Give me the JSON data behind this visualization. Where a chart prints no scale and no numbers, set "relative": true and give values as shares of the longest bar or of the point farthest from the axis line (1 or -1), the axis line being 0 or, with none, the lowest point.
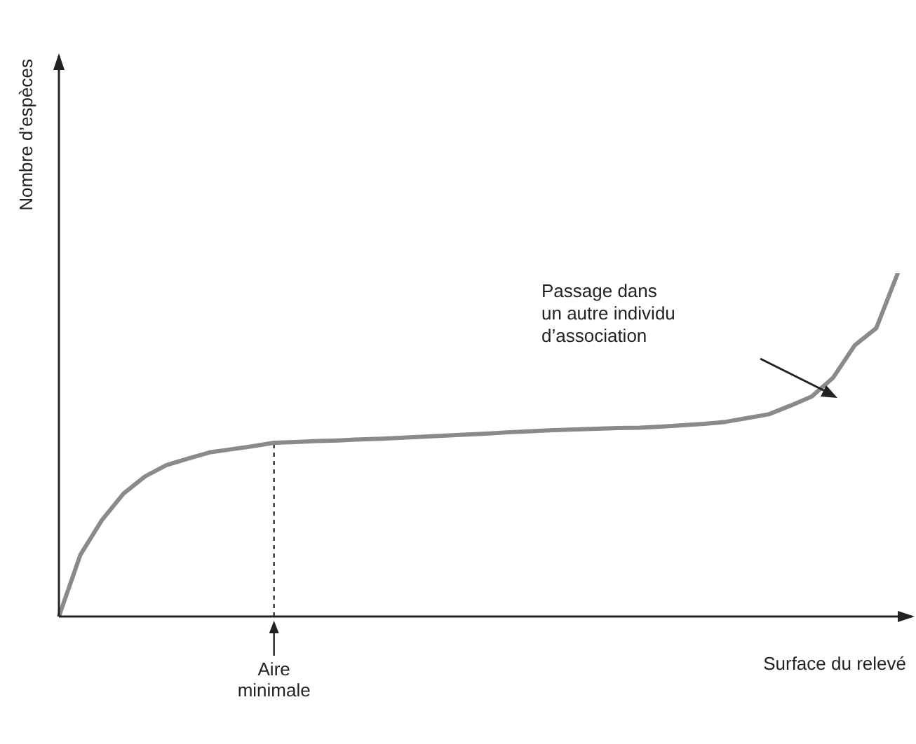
{
  "chart_data": {
    "type": "line",
    "relative": true,
    "xlabel": "Surface du relevé",
    "ylabel": "Nombre d’espèces",
    "marker": "none",
    "line_style": "solid",
    "categories": [
      null,
      null,
      null,
      null,
      null,
      null,
      null,
      null,
      null,
      null,
      null,
      null,
      null,
      null,
      null,
      null,
      null,
      null,
      null,
      null,
      null,
      null,
      null,
      null,
      null,
      null,
      null,
      null,
      null,
      null,
      null,
      null,
      null,
      null,
      null,
      null,
      null,
      null,
      null,
      null
    ],
    "series": [
      {
        "color": "#8a8a8a",
        "values": [
          0,
          0.18,
          0.281,
          0.358,
          0.408,
          0.441,
          0.46,
          0.478,
          0.487,
          0.496,
          0.506,
          0.508,
          0.511,
          0.513,
          0.516,
          0.518,
          0.521,
          0.524,
          0.527,
          0.53,
          0.533,
          0.537,
          0.54,
          0.543,
          0.545,
          0.547,
          0.549,
          0.55,
          0.553,
          0.557,
          0.561,
          0.567,
          0.578,
          0.589,
          0.614,
          0.641,
          0.696,
          0.79,
          0.84,
          1
        ]
      }
    ],
    "annotations": [
      "Aire minimale",
      "Passage dans un autre individu d’association"
    ]
  }
}
